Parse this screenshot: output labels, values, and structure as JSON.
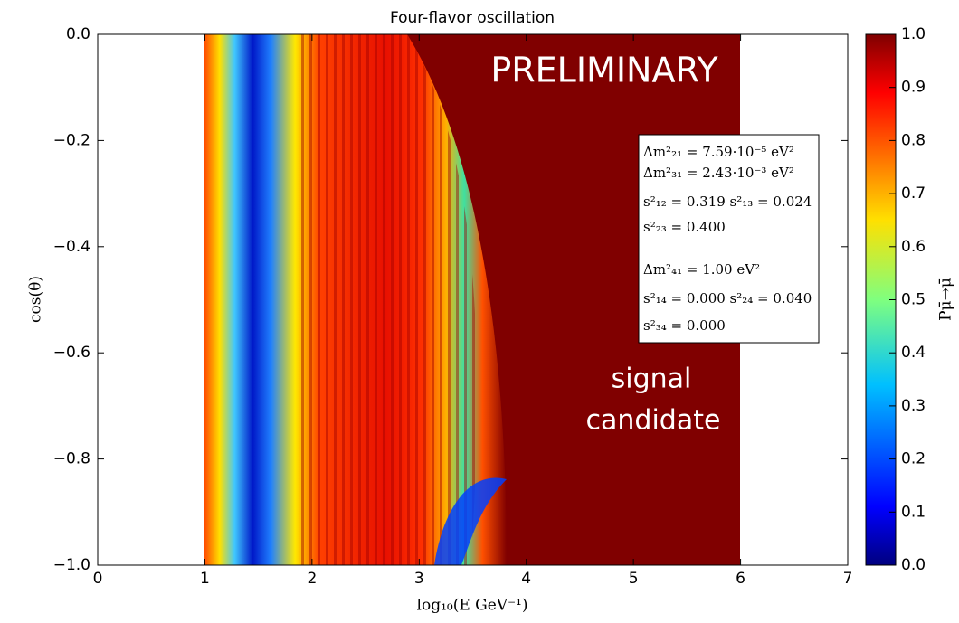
{
  "chart_data": {
    "type": "heatmap",
    "title": "Four-flavor oscillation",
    "x_label": "log₁₀(E GeV⁻¹)",
    "y_label": "cos(θ)",
    "xlim": [
      0,
      7
    ],
    "xticks": [
      0,
      1,
      2,
      3,
      4,
      5,
      6,
      7
    ],
    "ylim": [
      -1,
      0
    ],
    "yticks": [
      {
        "value": -1,
        "label": "−1.0"
      },
      {
        "value": -0.8,
        "label": "−0.8"
      },
      {
        "value": -0.6,
        "label": "−0.6"
      },
      {
        "value": -0.4,
        "label": "−0.4"
      },
      {
        "value": -0.2,
        "label": "−0.2"
      },
      {
        "value": 0,
        "label": "0.0"
      }
    ],
    "colorbar": {
      "label": "Pμ̄→μ̄",
      "clim": [
        0,
        1
      ],
      "ticks": [
        {
          "value": 0,
          "label": "0.0"
        },
        0.1,
        0.2,
        0.3,
        0.4,
        0.5,
        0.6,
        0.7,
        0.8,
        0.9,
        {
          "value": 1,
          "label": "1.0"
        }
      ]
    },
    "annotations": [
      "PRELIMINARY",
      "signal",
      "candidate"
    ],
    "parameters": [
      "Δm²₂₁ = 7.59·10⁻⁵ eV²",
      "Δm²₃₁ = 2.43·10⁻³ eV²",
      "s²₁₂ = 0.319  s²₁₃ = 0.024",
      "s²₂₃ = 0.400",
      "Δm²₄₁ = 1.00 eV²",
      "s²₁₄ = 0.000  s²₂₄ = 0.040",
      "s²₃₄ = 0.000"
    ]
  }
}
